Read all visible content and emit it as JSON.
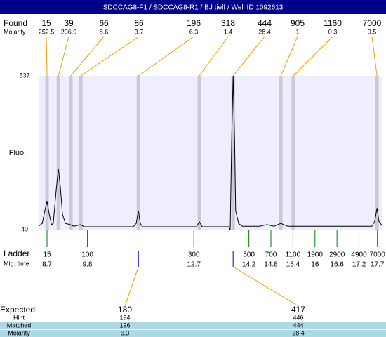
{
  "title": "SDCCAG8-F1 / SDCCAG8-R1 / BJ tielf / Well ID 1092613",
  "found": {
    "label": "Found",
    "sublabel": "Molarity",
    "sizes": [
      15,
      39,
      66,
      86,
      196,
      318,
      444,
      905,
      1160,
      7000
    ],
    "molarity": [
      252.5,
      236.9,
      8.6,
      3.7,
      6.3,
      1.4,
      28.4,
      1,
      0.3,
      0.5
    ],
    "times": [
      8.7,
      9.01,
      9.35,
      9.62,
      11.19,
      12.85,
      13.77,
      15.07,
      15.41,
      17.69
    ]
  },
  "chart_data": {
    "type": "line",
    "ylabel": "Fluo.",
    "ylim": [
      40,
      537
    ],
    "yticks": [
      40,
      537
    ],
    "xlim": [
      8.47,
      17.84
    ],
    "color": "#000000",
    "x": [
      8.47,
      8.57,
      8.64,
      8.7,
      8.76,
      8.82,
      8.87,
      8.95,
      9.01,
      9.06,
      9.12,
      9.2,
      9.33,
      9.43,
      9.62,
      9.71,
      11.05,
      11.13,
      11.19,
      11.24,
      11.3,
      12.77,
      12.85,
      12.93,
      13.65,
      13.69,
      13.73,
      13.77,
      13.81,
      13.84,
      13.92,
      14.02,
      14.49,
      14.69,
      14.88,
      15.07,
      15.26,
      15.83,
      17.55,
      17.63,
      17.69,
      17.74,
      17.84
    ],
    "values": [
      51,
      60,
      101,
      131,
      90,
      56,
      60,
      169,
      237,
      181,
      90,
      60,
      56,
      51,
      56,
      49,
      49,
      60,
      101,
      60,
      49,
      49,
      65,
      49,
      49,
      38,
      328,
      537,
      328,
      101,
      60,
      51,
      51,
      56,
      51,
      60,
      51,
      51,
      51,
      67,
      110,
      67,
      51
    ]
  },
  "ladder": {
    "label": "Ladder",
    "sublabel": "Mig. time",
    "sizes": [
      15,
      100,
      300,
      500,
      700,
      1100,
      1900,
      2900,
      4900,
      7000
    ],
    "mig_times": [
      8.7,
      9.8,
      12.7,
      14.2,
      14.8,
      15.4,
      16,
      16.6,
      17.2,
      17.7
    ]
  },
  "expected": {
    "labels": [
      "Expected",
      "Hint",
      "Matched",
      "Molarity"
    ],
    "items": [
      {
        "expected": 180,
        "hint": 194,
        "matched": 196,
        "molarity": 6.3
      },
      {
        "expected": 417,
        "hint": 446,
        "matched": 444,
        "molarity": 28.4
      }
    ]
  }
}
